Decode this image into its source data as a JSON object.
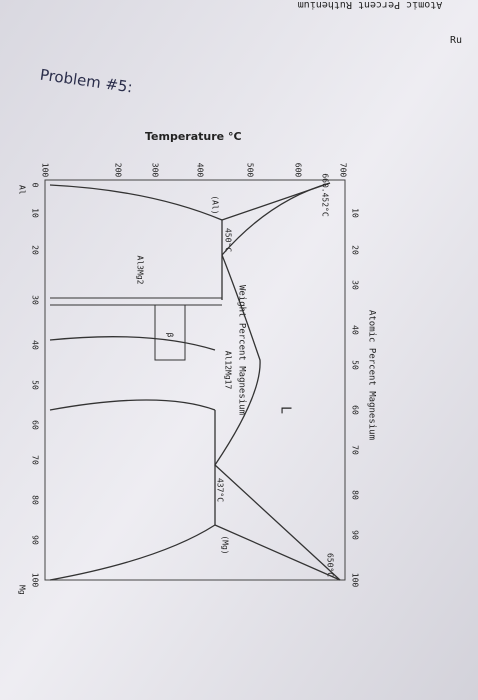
{
  "header": {
    "title": "Problem #5:",
    "top_label": "Atomic Percent Ruthenium",
    "corner": "Ru"
  },
  "diagram": {
    "temperature_label": "Temperature °C",
    "top_axis_label": "Atomic Percent Magnesium",
    "bottom_axis_label": "Weight Percent Magnesium",
    "temperature_ticks": [
      "100",
      "200",
      "300",
      "400",
      "500",
      "600",
      "700"
    ],
    "atomic_ticks": [
      "10",
      "20",
      "30",
      "40",
      "50",
      "60",
      "70",
      "80",
      "90",
      "100"
    ],
    "weight_ticks": [
      "0",
      "10",
      "20",
      "30",
      "40",
      "50",
      "60",
      "70",
      "80",
      "90",
      "100"
    ],
    "left_element": "Al",
    "right_element": "Mg",
    "labels": [
      "660.452°C",
      "(Al)",
      "450°C",
      "Al3Mg2",
      "β",
      "Al12Mg17",
      "L",
      "437°C",
      "(Mg)",
      "650°C"
    ]
  }
}
